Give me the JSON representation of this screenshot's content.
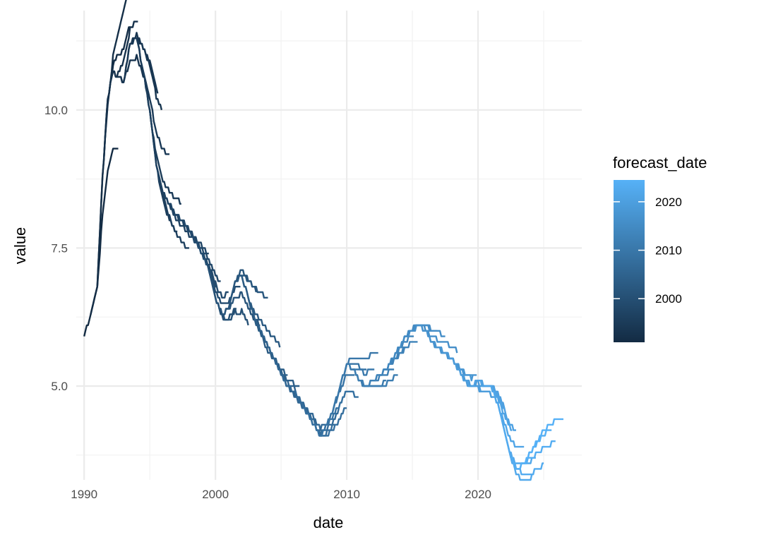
{
  "chart_data": {
    "type": "line",
    "title": "",
    "xlabel": "date",
    "ylabel": "value",
    "xlim": [
      1989.4,
      2027.9
    ],
    "ylim": [
      3.3,
      11.8
    ],
    "x_ticks": [
      {
        "value": 1990,
        "label": "1990"
      },
      {
        "value": 2000,
        "label": "2000"
      },
      {
        "value": 2010,
        "label": "2010"
      },
      {
        "value": 2020,
        "label": "2020"
      }
    ],
    "x_minor": [
      1995,
      2005,
      2015,
      2025
    ],
    "y_ticks": [
      {
        "value": 5.0,
        "label": "5.0"
      },
      {
        "value": 7.5,
        "label": "7.5"
      },
      {
        "value": 10.0,
        "label": "10.0"
      }
    ],
    "y_minor": [
      3.75,
      6.25,
      8.75,
      11.25
    ],
    "grid": true,
    "legend": {
      "title": "forecast_date",
      "placement": "right",
      "type": "colorbar",
      "range": [
        1991,
        2024.5
      ],
      "color_low": "#132B43",
      "color_high": "#56B1F7",
      "ticks": [
        {
          "value": 2000,
          "label": "2000"
        },
        {
          "value": 2010,
          "label": "2010"
        },
        {
          "value": 2020,
          "label": "2020"
        }
      ]
    },
    "actual_series": {
      "name": "",
      "x": [
        1990.0,
        1990.5,
        1991.0,
        1991.4,
        1991.8,
        1992.2,
        1992.6,
        1993.0,
        1993.5,
        1994.0,
        1994.5,
        1995.0,
        1995.5,
        1996.0,
        1996.5,
        1997.0,
        1997.5,
        1998.0,
        1998.5,
        1999.0,
        1999.5,
        2000.0,
        2000.5,
        2001.0,
        2001.5,
        2002.0,
        2002.5,
        2003.0,
        2003.5,
        2004.0,
        2004.5,
        2005.0,
        2005.5,
        2006.0,
        2006.5,
        2007.0,
        2007.5,
        2008.0,
        2008.5,
        2009.0,
        2009.5,
        2010.0,
        2010.5,
        2011.0,
        2011.5,
        2012.0,
        2012.5,
        2013.0,
        2013.5,
        2014.0,
        2014.5,
        2015.0,
        2015.5,
        2016.0,
        2016.5,
        2017.0,
        2017.5,
        2018.0,
        2018.5,
        2019.0,
        2019.5,
        2020.0,
        2020.4,
        2020.8,
        2021.2,
        2021.6,
        2022.0,
        2022.5,
        2023.0,
        2023.5,
        2024.0,
        2024.5,
        2025.0,
        2025.5,
        2026.0
      ],
      "y": [
        5.9,
        6.3,
        6.8,
        8.8,
        10.2,
        10.7,
        10.6,
        10.5,
        11.2,
        11.3,
        10.7,
        10.0,
        9.0,
        8.5,
        8.3,
        8.1,
        8.0,
        7.8,
        7.6,
        7.4,
        7.1,
        6.6,
        6.3,
        6.4,
        6.9,
        7.0,
        6.6,
        6.2,
        6.0,
        5.7,
        5.5,
        5.2,
        5.0,
        4.9,
        4.7,
        4.5,
        4.3,
        4.1,
        4.3,
        4.6,
        5.0,
        5.4,
        5.3,
        5.1,
        5.0,
        5.1,
        5.2,
        5.3,
        5.5,
        5.7,
        5.9,
        6.0,
        6.1,
        6.0,
        5.8,
        5.7,
        5.6,
        5.5,
        5.3,
        5.1,
        5.0,
        5.1,
        5.0,
        5.0,
        4.9,
        4.6,
        4.2,
        3.7,
        3.5,
        3.6,
        3.8,
        4.0,
        4.2,
        4.3,
        4.4
      ]
    }
  }
}
